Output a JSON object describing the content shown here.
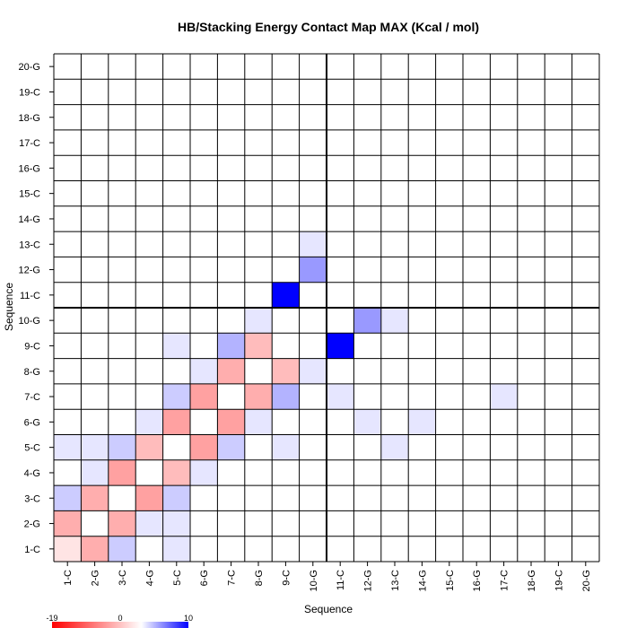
{
  "chart_data": {
    "type": "heatmap",
    "title": "HB/Stacking Energy Contact Map MAX (Kcal / mol)",
    "xlabel": "Sequence",
    "ylabel": "Sequence",
    "labels": [
      "1-C",
      "2-G",
      "3-C",
      "4-G",
      "5-C",
      "6-G",
      "7-C",
      "8-G",
      "9-C",
      "10-G",
      "11-C",
      "12-G",
      "13-C",
      "14-G",
      "15-C",
      "16-G",
      "17-C",
      "18-G",
      "19-C",
      "20-G"
    ],
    "value_range": [
      -19,
      10
    ],
    "colors": {
      "min": "#ff0000",
      "mid": "#ffffff",
      "max": "#0000ff",
      "gridline": "#000000"
    },
    "separator_after": "10-G",
    "legend": {
      "position": "bottom-left",
      "ticks": [
        "-19",
        "0",
        "10"
      ]
    },
    "grid": true,
    "cells": [
      [
        -2,
        -6,
        2,
        0,
        1,
        0,
        0,
        0,
        0,
        0,
        0,
        0,
        0,
        0,
        0,
        0,
        0,
        0,
        0,
        0
      ],
      [
        -6,
        0,
        -6,
        1,
        1,
        0,
        0,
        0,
        0,
        0,
        0,
        0,
        0,
        0,
        0,
        0,
        0,
        0,
        0,
        0
      ],
      [
        2,
        -6,
        0,
        -7,
        2,
        0,
        0,
        0,
        0,
        0,
        0,
        0,
        0,
        0,
        0,
        0,
        0,
        0,
        0,
        0
      ],
      [
        0,
        1,
        -7,
        0,
        -5,
        1,
        0,
        0,
        0,
        0,
        0,
        0,
        0,
        0,
        0,
        0,
        0,
        0,
        0,
        0
      ],
      [
        1,
        1,
        2,
        -5,
        0,
        -7,
        2,
        0,
        1,
        0,
        0,
        0,
        0,
        0,
        0,
        0,
        0,
        0,
        0,
        0
      ],
      [
        0,
        0,
        0,
        1,
        -7,
        0,
        -7,
        1,
        0,
        0,
        0,
        0,
        0,
        0,
        0,
        0,
        0,
        0,
        0,
        0
      ],
      [
        0,
        0,
        0,
        0,
        2,
        -7,
        0,
        -6,
        3,
        0,
        0,
        0,
        0,
        0,
        0,
        0,
        0,
        0,
        0,
        0
      ],
      [
        0,
        0,
        0,
        0,
        0,
        1,
        -6,
        0,
        -5,
        1,
        0,
        0,
        0,
        0,
        0,
        0,
        0,
        0,
        0,
        0
      ],
      [
        0,
        0,
        0,
        0,
        1,
        0,
        3,
        -5,
        0,
        0,
        10,
        0,
        0,
        0,
        0,
        0,
        0,
        0,
        0,
        0
      ],
      [
        0,
        0,
        0,
        0,
        0,
        0,
        0,
        1,
        0,
        0,
        0,
        4,
        1,
        0,
        0,
        0,
        0,
        0,
        0,
        0
      ],
      [
        0,
        0,
        0,
        0,
        0,
        0,
        1,
        0,
        10,
        0,
        0,
        0,
        0,
        0,
        0,
        0,
        0,
        0,
        0,
        0
      ],
      [
        0,
        0,
        0,
        0,
        0,
        1,
        0,
        0,
        0,
        4,
        0,
        0,
        0,
        0,
        0,
        0,
        0,
        0,
        0,
        0
      ],
      [
        0,
        0,
        0,
        0,
        1,
        0,
        0,
        0,
        0,
        1,
        0,
        0,
        0,
        0,
        0,
        0,
        0,
        0,
        0,
        0
      ],
      [
        0,
        0,
        0,
        0,
        0,
        1,
        0,
        0,
        0,
        0,
        0,
        0,
        0,
        0,
        0,
        0,
        0,
        0,
        0,
        0
      ],
      [
        0,
        0,
        0,
        0,
        0,
        0,
        0,
        0,
        0,
        0,
        0,
        0,
        0,
        0,
        0,
        0,
        0,
        0,
        0,
        0
      ],
      [
        0,
        0,
        0,
        0,
        0,
        0,
        0,
        0,
        0,
        0,
        0,
        0,
        0,
        0,
        0,
        0,
        0,
        0,
        0,
        0
      ],
      [
        0,
        0,
        0,
        0,
        0,
        0,
        1,
        0,
        0,
        0,
        0,
        0,
        0,
        0,
        0,
        0,
        0,
        0,
        0,
        0
      ],
      [
        0,
        0,
        0,
        0,
        0,
        0,
        0,
        0,
        0,
        0,
        0,
        0,
        0,
        0,
        0,
        0,
        0,
        0,
        0,
        0
      ],
      [
        0,
        0,
        0,
        0,
        0,
        0,
        0,
        0,
        0,
        0,
        0,
        0,
        0,
        0,
        0,
        0,
        0,
        0,
        0,
        0
      ],
      [
        0,
        0,
        0,
        0,
        0,
        0,
        0,
        0,
        0,
        0,
        0,
        0,
        0,
        0,
        0,
        0,
        0,
        0,
        0,
        0
      ]
    ]
  }
}
